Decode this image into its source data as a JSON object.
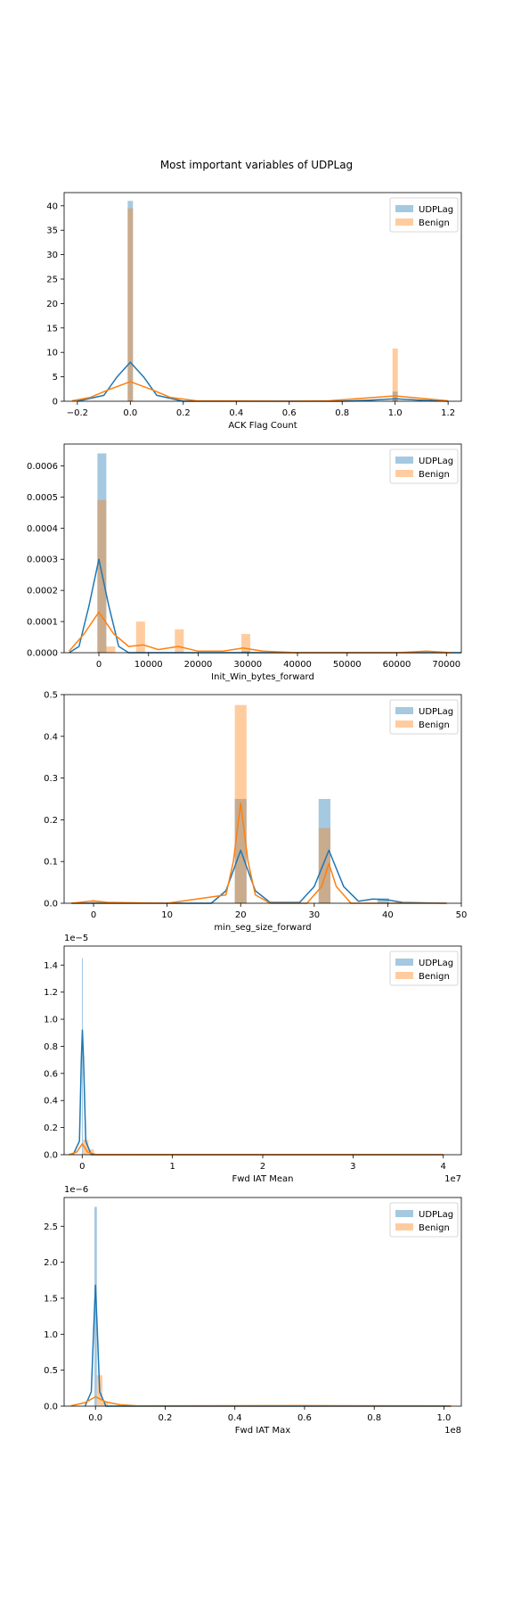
{
  "figure": {
    "title": "Most important variables of UDPLag"
  },
  "colors": {
    "udplag": "#1f77b4",
    "benign": "#ff7f0e"
  },
  "chart_data": [
    {
      "type": "histogram",
      "xlabel": "ACK Flag Count",
      "xlim": [
        -0.25,
        1.25
      ],
      "ylim": [
        0,
        42.7
      ],
      "xticks": [
        -0.2,
        0.0,
        0.2,
        0.4,
        0.6,
        0.8,
        1.0,
        1.2
      ],
      "xtick_labels": [
        "−0.2",
        "0.0",
        "0.2",
        "0.4",
        "0.6",
        "0.8",
        "1.0",
        "1.2"
      ],
      "yticks": [
        0,
        5,
        10,
        15,
        20,
        25,
        30,
        35,
        40
      ],
      "ytick_labels": [
        "0",
        "5",
        "10",
        "15",
        "20",
        "25",
        "30",
        "35",
        "40"
      ],
      "offset_label": "",
      "legend": [
        "UDPLag",
        "Benign"
      ],
      "series": [
        {
          "name": "UDPLag",
          "bars": [
            [
              -0.01,
              0.01,
              41.0
            ],
            [
              0.99,
              1.01,
              2.0
            ]
          ],
          "kde": [
            [
              -0.2,
              0
            ],
            [
              -0.1,
              1.2
            ],
            [
              -0.05,
              5.0
            ],
            [
              0.0,
              8.0
            ],
            [
              0.05,
              5.0
            ],
            [
              0.1,
              1.2
            ],
            [
              0.2,
              0
            ],
            [
              0.8,
              0
            ],
            [
              0.9,
              0.2
            ],
            [
              1.0,
              0.5
            ],
            [
              1.1,
              0.2
            ],
            [
              1.2,
              0
            ]
          ]
        },
        {
          "name": "Benign",
          "bars": [
            [
              -0.01,
              0.01,
              39.5
            ],
            [
              0.99,
              1.01,
              10.8
            ]
          ],
          "kde": [
            [
              -0.22,
              0.1
            ],
            [
              -0.15,
              0.8
            ],
            [
              -0.08,
              2.4
            ],
            [
              0.0,
              4.0
            ],
            [
              0.08,
              2.4
            ],
            [
              0.15,
              0.8
            ],
            [
              0.25,
              0.1
            ],
            [
              0.6,
              0
            ],
            [
              0.75,
              0.1
            ],
            [
              0.85,
              0.5
            ],
            [
              1.0,
              1.1
            ],
            [
              1.1,
              0.6
            ],
            [
              1.2,
              0.1
            ]
          ]
        }
      ]
    },
    {
      "type": "histogram",
      "xlabel": "Init_Win_bytes_forward",
      "xlim": [
        -7000,
        73000
      ],
      "ylim": [
        0,
        0.00067
      ],
      "xticks": [
        0,
        10000,
        20000,
        30000,
        40000,
        50000,
        60000,
        70000
      ],
      "xtick_labels": [
        "0",
        "10000",
        "20000",
        "30000",
        "40000",
        "50000",
        "60000",
        "70000"
      ],
      "yticks": [
        0,
        0.0001,
        0.0002,
        0.0003,
        0.0004,
        0.0005,
        0.0006
      ],
      "ytick_labels": [
        "0.0000",
        "0.0001",
        "0.0002",
        "0.0003",
        "0.0004",
        "0.0005",
        "0.0006"
      ],
      "offset_label": "",
      "legend": [
        "UDPLag",
        "Benign"
      ],
      "series": [
        {
          "name": "UDPLag",
          "bars": [
            [
              -300,
              1500,
              0.00064
            ],
            [
              28700,
              30500,
              5e-06
            ]
          ],
          "kde": [
            [
              -6000,
              0
            ],
            [
              -4000,
              2e-05
            ],
            [
              -2000,
              0.00015
            ],
            [
              0,
              0.0003
            ],
            [
              2000,
              0.00015
            ],
            [
              4000,
              2e-05
            ],
            [
              6000,
              0
            ],
            [
              73000,
              0
            ]
          ]
        },
        {
          "name": "Benign",
          "bars": [
            [
              -300,
              1500,
              0.00049
            ],
            [
              1500,
              3300,
              2e-05
            ],
            [
              7500,
              9300,
              0.0001
            ],
            [
              15300,
              17100,
              7.5e-05
            ],
            [
              28700,
              30500,
              6e-05
            ]
          ],
          "kde": [
            [
              -6000,
              5e-06
            ],
            [
              -3000,
              6e-05
            ],
            [
              0,
              0.00013
            ],
            [
              3000,
              6e-05
            ],
            [
              6000,
              2e-05
            ],
            [
              9000,
              2.5e-05
            ],
            [
              12000,
              1e-05
            ],
            [
              16000,
              2e-05
            ],
            [
              20000,
              5e-06
            ],
            [
              25000,
              5e-06
            ],
            [
              29000,
              1.5e-05
            ],
            [
              33000,
              5e-06
            ],
            [
              40000,
              0
            ],
            [
              60000,
              0
            ],
            [
              66000,
              5e-06
            ],
            [
              71000,
              0
            ]
          ]
        }
      ]
    },
    {
      "type": "histogram",
      "xlabel": "min_seg_size_forward",
      "xlim": [
        -4,
        50
      ],
      "ylim": [
        0,
        0.5
      ],
      "xticks": [
        0,
        10,
        20,
        30,
        40,
        50
      ],
      "xtick_labels": [
        "0",
        "10",
        "20",
        "30",
        "40",
        "50"
      ],
      "yticks": [
        0,
        0.1,
        0.2,
        0.3,
        0.4,
        0.5
      ],
      "ytick_labels": [
        "0.0",
        "0.1",
        "0.2",
        "0.3",
        "0.4",
        "0.5"
      ],
      "offset_label": "",
      "legend": [
        "UDPLag",
        "Benign"
      ],
      "series": [
        {
          "name": "UDPLag",
          "bars": [
            [
              19.2,
              20.8,
              0.25
            ],
            [
              30.6,
              32.2,
              0.25
            ],
            [
              38.6,
              40.2,
              0.012
            ]
          ],
          "kde": [
            [
              -3,
              0
            ],
            [
              16,
              0
            ],
            [
              18,
              0.03
            ],
            [
              20,
              0.127
            ],
            [
              22,
              0.03
            ],
            [
              24,
              0.002
            ],
            [
              28,
              0.002
            ],
            [
              30,
              0.04
            ],
            [
              32,
              0.127
            ],
            [
              34,
              0.04
            ],
            [
              36,
              0.005
            ],
            [
              38,
              0.01
            ],
            [
              40,
              0.008
            ],
            [
              42,
              0.002
            ],
            [
              48,
              0
            ]
          ]
        },
        {
          "name": "Benign",
          "bars": [
            [
              -0.4,
              1.2,
              0.005
            ],
            [
              19.2,
              20.8,
              0.475
            ],
            [
              30.6,
              32.2,
              0.18
            ]
          ],
          "kde": [
            [
              -3,
              0
            ],
            [
              0,
              0.006
            ],
            [
              2,
              0.002
            ],
            [
              10,
              0
            ],
            [
              18,
              0.02
            ],
            [
              19,
              0.1
            ],
            [
              20,
              0.24
            ],
            [
              21,
              0.1
            ],
            [
              22,
              0.02
            ],
            [
              24,
              0
            ],
            [
              29,
              0
            ],
            [
              31,
              0.04
            ],
            [
              32,
              0.095
            ],
            [
              33,
              0.04
            ],
            [
              35,
              0
            ],
            [
              48,
              0
            ]
          ]
        }
      ]
    },
    {
      "type": "histogram",
      "xlabel": "Fwd IAT Mean",
      "xlim": [
        -2000000,
        42000000
      ],
      "ylim": [
        0,
        1.54e-05
      ],
      "xticks": [
        0,
        10000000,
        20000000,
        30000000,
        40000000
      ],
      "xtick_labels": [
        "0",
        "1",
        "2",
        "3",
        "4"
      ],
      "yticks": [
        0,
        2e-06,
        4e-06,
        6e-06,
        8e-06,
        1e-05,
        1.2e-05,
        1.4e-05
      ],
      "ytick_labels": [
        "0.0",
        "0.2",
        "0.4",
        "0.6",
        "0.8",
        "1.0",
        "1.2",
        "1.4"
      ],
      "offset_label": "1e−5",
      "x_offset_label": "1e7",
      "legend": [
        "UDPLag",
        "Benign"
      ],
      "series": [
        {
          "name": "UDPLag",
          "bars": [
            [
              -30000,
              70000,
              1.45e-05
            ]
          ],
          "kde": [
            [
              -1000000,
              0
            ],
            [
              -300000,
              1e-06
            ],
            [
              -100000,
              7e-06
            ],
            [
              20000,
              9.2e-06
            ],
            [
              150000,
              7e-06
            ],
            [
              400000,
              1e-06
            ],
            [
              1000000,
              0
            ],
            [
              40000000,
              0
            ]
          ]
        },
        {
          "name": "Benign",
          "bars": [
            [
              70000,
              700000,
              1.1e-06
            ],
            [
              700000,
              1300000,
              4e-07
            ]
          ],
          "kde": [
            [
              -1500000,
              0
            ],
            [
              -600000,
              2e-07
            ],
            [
              0,
              8e-07
            ],
            [
              600000,
              2e-07
            ],
            [
              1500000,
              2e-08
            ],
            [
              5000000,
              1e-08
            ],
            [
              40000000,
              0
            ]
          ]
        }
      ]
    },
    {
      "type": "histogram",
      "xlabel": "Fwd IAT Max",
      "xlim": [
        -9000000,
        105000000
      ],
      "ylim": [
        0,
        2.9e-06
      ],
      "xticks": [
        0,
        20000000,
        40000000,
        60000000,
        80000000,
        100000000
      ],
      "xtick_labels": [
        "0.0",
        "0.2",
        "0.4",
        "0.6",
        "0.8",
        "1.0"
      ],
      "yticks": [
        0,
        5e-07,
        1e-06,
        1.5e-06,
        2e-06,
        2.5e-06
      ],
      "ytick_labels": [
        "0.0",
        "0.5",
        "1.0",
        "1.5",
        "2.0",
        "2.5"
      ],
      "offset_label": "1e−6",
      "x_offset_label": "1e8",
      "legend": [
        "UDPLag",
        "Benign"
      ],
      "series": [
        {
          "name": "UDPLag",
          "bars": [
            [
              -300000,
              400000,
              2.77e-06
            ]
          ],
          "kde": [
            [
              -3000000,
              0
            ],
            [
              -1200000,
              2e-07
            ],
            [
              -400000,
              1.2e-06
            ],
            [
              0,
              1.68e-06
            ],
            [
              400000,
              1.2e-06
            ],
            [
              1200000,
              2e-07
            ],
            [
              3000000,
              0
            ],
            [
              102000000,
              0
            ]
          ]
        },
        {
          "name": "Benign",
          "bars": [
            [
              400000,
              2000000,
              4.3e-07
            ],
            [
              2000000,
              3600000,
              5e-08
            ]
          ],
          "kde": [
            [
              -7000000,
              5e-09
            ],
            [
              -3000000,
              5e-08
            ],
            [
              0,
              1.3e-07
            ],
            [
              3000000,
              6e-08
            ],
            [
              7000000,
              2e-08
            ],
            [
              12000000,
              5e-09
            ],
            [
              60000000,
              8e-09
            ],
            [
              100000000,
              5e-09
            ],
            [
              102000000,
              0
            ]
          ]
        }
      ]
    }
  ]
}
